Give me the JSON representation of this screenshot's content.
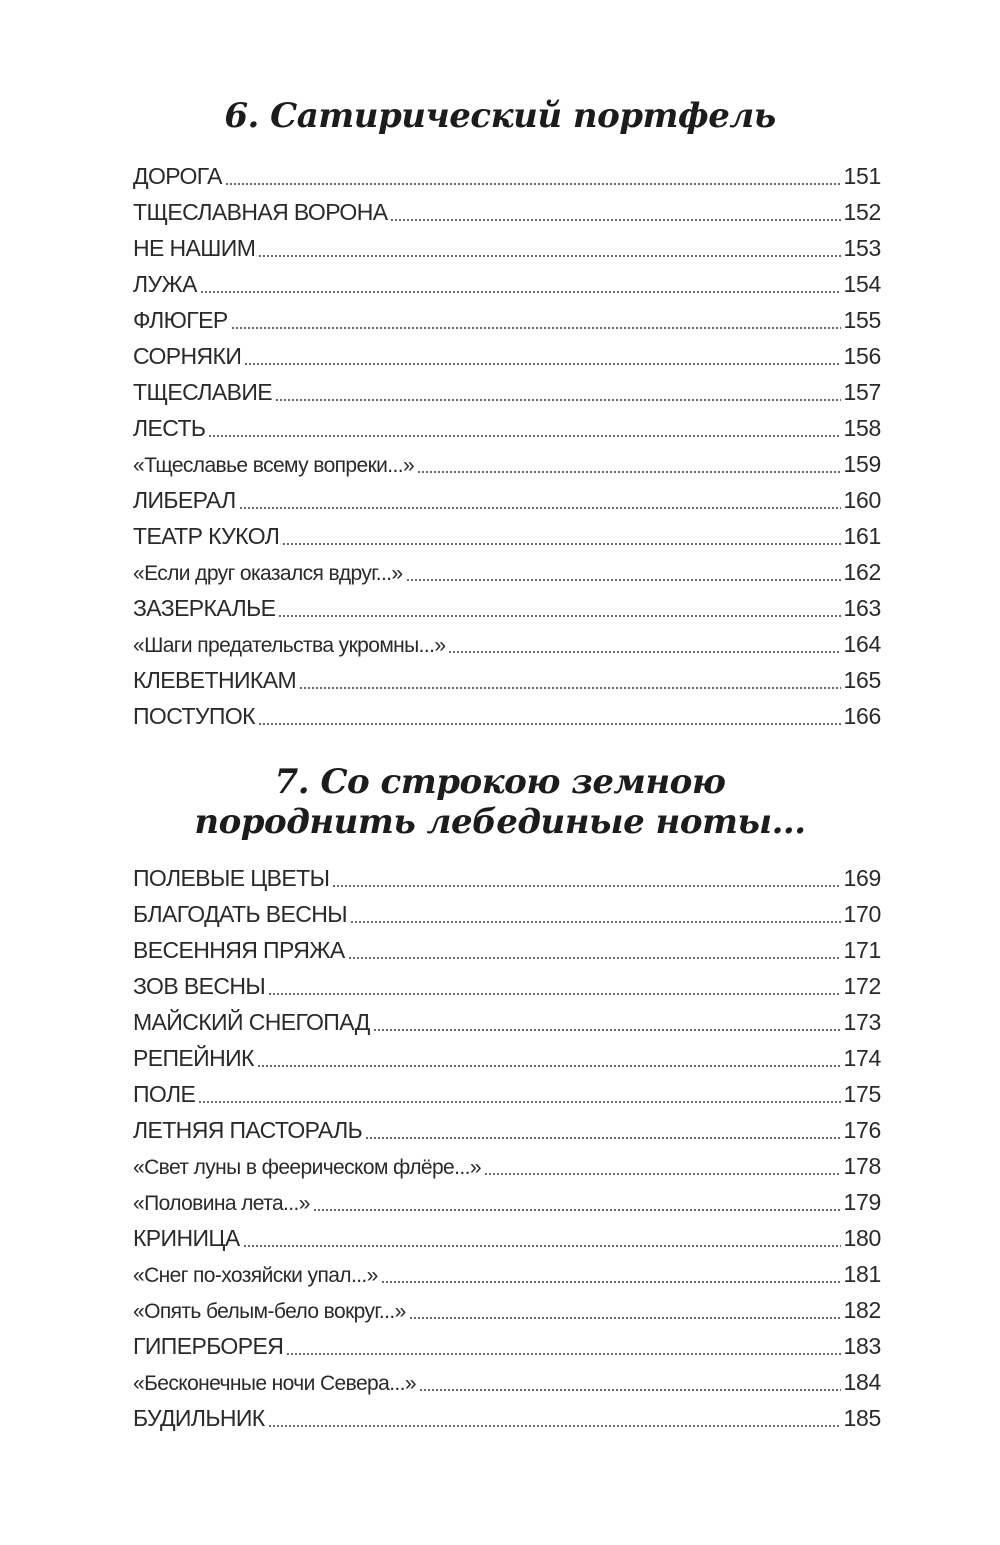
{
  "sections": [
    {
      "title": "6.  Сатирический портфель",
      "entries": [
        {
          "title": "ДОРОГА",
          "page": "151"
        },
        {
          "title": "ТЩЕСЛАВНАЯ ВОРОНА",
          "page": "152"
        },
        {
          "title": "НЕ НАШИМ",
          "page": "153"
        },
        {
          "title": "ЛУЖА",
          "page": "154"
        },
        {
          "title": "ФЛЮГЕР",
          "page": "155"
        },
        {
          "title": "СОРНЯКИ",
          "page": "156"
        },
        {
          "title": "ТЩЕСЛАВИЕ",
          "page": "157"
        },
        {
          "title": "ЛЕСТЬ",
          "page": "158"
        },
        {
          "title": "«Тщеславье всему вопреки...»",
          "page": "159"
        },
        {
          "title": "ЛИБЕРАЛ",
          "page": "160"
        },
        {
          "title": "ТЕАТР КУКОЛ",
          "page": "161"
        },
        {
          "title": "«Если друг оказался вдруг...»",
          "page": "162"
        },
        {
          "title": "ЗАЗЕРКАЛЬЕ",
          "page": "163"
        },
        {
          "title": "«Шаги предательства укромны...»",
          "page": "164"
        },
        {
          "title": "КЛЕВЕТНИКАМ",
          "page": "165"
        },
        {
          "title": "ПОСТУПОК",
          "page": "166"
        }
      ]
    },
    {
      "title_line1": "7.  Со строкою земною",
      "title_line2": "породнить лебединые ноты...",
      "entries": [
        {
          "title": "ПОЛЕВЫЕ ЦВЕТЫ",
          "page": "169"
        },
        {
          "title": "БЛАГОДАТЬ ВЕСНЫ",
          "page": "170"
        },
        {
          "title": "ВЕСЕННЯЯ ПРЯЖА",
          "page": "171"
        },
        {
          "title": "ЗОВ ВЕСНЫ",
          "page": "172"
        },
        {
          "title": "МАЙСКИЙ СНЕГОПАД",
          "page": "173"
        },
        {
          "title": "РЕПЕЙНИК",
          "page": "174"
        },
        {
          "title": "ПОЛЕ",
          "page": "175"
        },
        {
          "title": "ЛЕТНЯЯ ПАСТОРАЛЬ",
          "page": "176"
        },
        {
          "title": "«Свет луны в феерическом флёре...»",
          "page": "178"
        },
        {
          "title": "«Половина лета...»",
          "page": "179"
        },
        {
          "title": "КРИНИЦА",
          "page": "180"
        },
        {
          "title": "«Снег по-хозяйски упал...»",
          "page": "181"
        },
        {
          "title": "«Опять белым-бело вокруг...»",
          "page": "182"
        },
        {
          "title": "ГИПЕРБОРЕЯ",
          "page": "183"
        },
        {
          "title": "«Бесконечные ночи Севера...»",
          "page": "184"
        },
        {
          "title": "БУДИЛЬНИК",
          "page": "185"
        }
      ]
    }
  ]
}
